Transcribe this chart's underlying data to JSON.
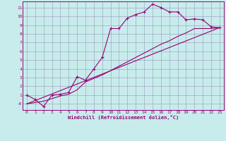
{
  "xlabel": "Windchill (Refroidissement éolien,°C)",
  "bg_color": "#c8ecec",
  "grid_color": "#9999bb",
  "line_color": "#990077",
  "xlim": [
    -0.5,
    23.5
  ],
  "ylim": [
    -0.7,
    11.7
  ],
  "xticks": [
    0,
    1,
    2,
    3,
    4,
    5,
    6,
    7,
    8,
    9,
    10,
    11,
    12,
    13,
    14,
    15,
    16,
    17,
    18,
    19,
    20,
    21,
    22,
    23
  ],
  "yticks": [
    0,
    1,
    2,
    3,
    4,
    5,
    6,
    7,
    8,
    9,
    10,
    11
  ],
  "ytick_labels": [
    "-0",
    "1",
    "2",
    "3",
    "4",
    "5",
    "6",
    "7",
    "8",
    "9",
    "10",
    "11"
  ],
  "curve1_x": [
    0,
    1,
    2,
    3,
    4,
    5,
    6,
    7,
    8,
    9,
    10,
    11,
    12,
    13,
    14,
    15,
    16,
    17,
    18,
    19,
    20,
    21,
    22,
    23
  ],
  "curve1_y": [
    1.0,
    0.5,
    -0.3,
    1.0,
    1.1,
    1.3,
    3.1,
    2.7,
    4.0,
    5.3,
    8.6,
    8.6,
    9.8,
    10.2,
    10.5,
    11.4,
    11.0,
    10.5,
    10.5,
    9.6,
    9.7,
    9.6,
    8.8,
    8.7
  ],
  "curve2_x": [
    0,
    2,
    3,
    4,
    5,
    6,
    7,
    8,
    9,
    10,
    11,
    12,
    13,
    14,
    15,
    16,
    17,
    18,
    19,
    20,
    21,
    22,
    23
  ],
  "curve2_y": [
    0.0,
    0.3,
    0.6,
    0.9,
    1.1,
    1.6,
    2.5,
    2.9,
    3.3,
    3.8,
    4.3,
    4.8,
    5.3,
    5.8,
    6.3,
    6.8,
    7.2,
    7.7,
    8.1,
    8.6,
    8.6,
    8.6,
    8.7
  ],
  "curve3_x": [
    0,
    23
  ],
  "curve3_y": [
    0.0,
    8.7
  ],
  "marker": "+",
  "markersize": 3,
  "linewidth": 0.8
}
